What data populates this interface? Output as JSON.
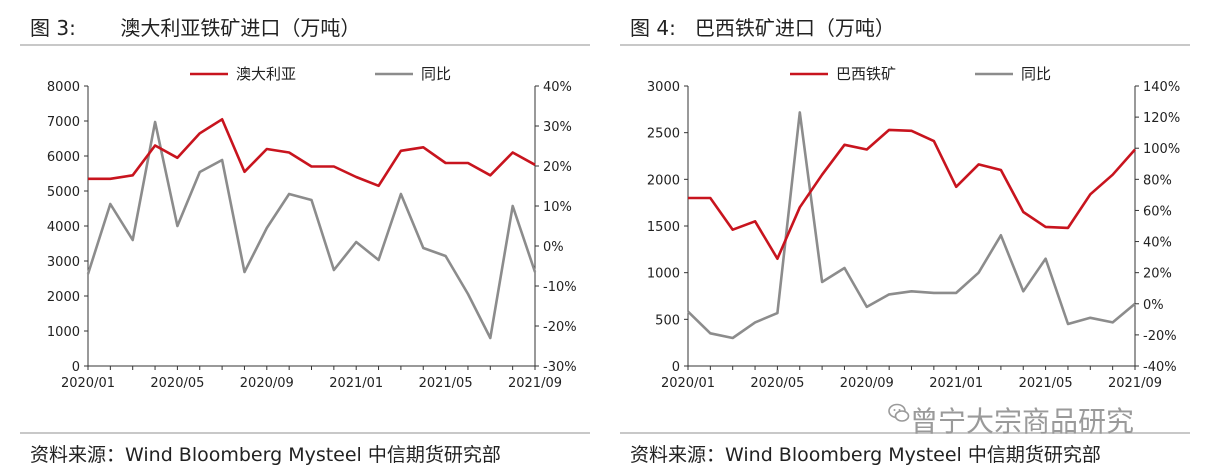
{
  "left": {
    "title": "图 3:       澳大利亚铁矿进口（万吨）",
    "source": "资料来源：Wind Bloomberg Mysteel 中信期货研究部"
  },
  "right": {
    "title": "图 4:   巴西铁矿进口（万吨）",
    "source": "资料来源：Wind Bloomberg Mysteel 中信期货研究部"
  },
  "watermark": {
    "text": "曾宁大宗商品研究",
    "icon": "wechat-icon"
  },
  "colors": {
    "primary": "#c8141e",
    "secondary": "#8c8c8c"
  },
  "chart_data": [
    {
      "type": "line",
      "x_ticks": [
        "2020/01",
        "2020/05",
        "2020/09",
        "2021/01",
        "2021/05",
        "2021/09"
      ],
      "left_axis": {
        "min": 0,
        "max": 8000,
        "ticks": [
          "0",
          "1000",
          "2000",
          "3000",
          "4000",
          "5000",
          "6000",
          "7000",
          "8000"
        ]
      },
      "right_axis": {
        "min": -30,
        "max": 40,
        "ticks": [
          "-30%",
          "-20%",
          "-10%",
          "0%",
          "10%",
          "20%",
          "30%",
          "40%"
        ]
      },
      "series": [
        {
          "name": "澳大利亚",
          "axis": "left",
          "color": "#c8141e",
          "values": [
            5350,
            5350,
            5450,
            6300,
            5950,
            6650,
            7050,
            5550,
            6200,
            6100,
            5700,
            5700,
            5400,
            5150,
            6150,
            6250,
            5800,
            5800,
            5450,
            6100,
            5750
          ]
        },
        {
          "name": "同比",
          "axis": "right",
          "color": "#8c8c8c",
          "values": [
            -7,
            10.5,
            1.5,
            31,
            5,
            18.5,
            21.5,
            -6.5,
            4.5,
            13,
            11.5,
            -6,
            1,
            -3.5,
            13,
            -0.5,
            -2.5,
            -12,
            -23,
            10,
            -6.5
          ]
        }
      ],
      "legend_position": "top",
      "grid": false
    },
    {
      "type": "line",
      "x_ticks": [
        "2020/01",
        "2020/05",
        "2020/09",
        "2021/01",
        "2021/05",
        "2021/09"
      ],
      "left_axis": {
        "min": 0,
        "max": 3000,
        "ticks": [
          "0",
          "500",
          "1000",
          "1500",
          "2000",
          "2500",
          "3000"
        ]
      },
      "right_axis": {
        "min": -40,
        "max": 140,
        "ticks": [
          "-40%",
          "-20%",
          "0%",
          "20%",
          "40%",
          "60%",
          "80%",
          "100%",
          "120%",
          "140%"
        ]
      },
      "series": [
        {
          "name": "巴西铁矿",
          "axis": "left",
          "color": "#c8141e",
          "values": [
            1800,
            1800,
            1460,
            1550,
            1150,
            1700,
            2050,
            2370,
            2320,
            2530,
            2520,
            2410,
            1920,
            2160,
            2100,
            1650,
            1490,
            1480,
            1840,
            2050,
            2320
          ]
        },
        {
          "name": "同比",
          "axis": "right",
          "color": "#8c8c8c",
          "values": [
            -5,
            -19,
            -22,
            -12,
            -6,
            123,
            14,
            23,
            -2,
            6,
            8,
            7,
            7,
            20,
            44,
            8,
            29,
            -13,
            -9,
            -12,
            0
          ]
        }
      ],
      "legend_position": "top",
      "grid": false
    }
  ]
}
